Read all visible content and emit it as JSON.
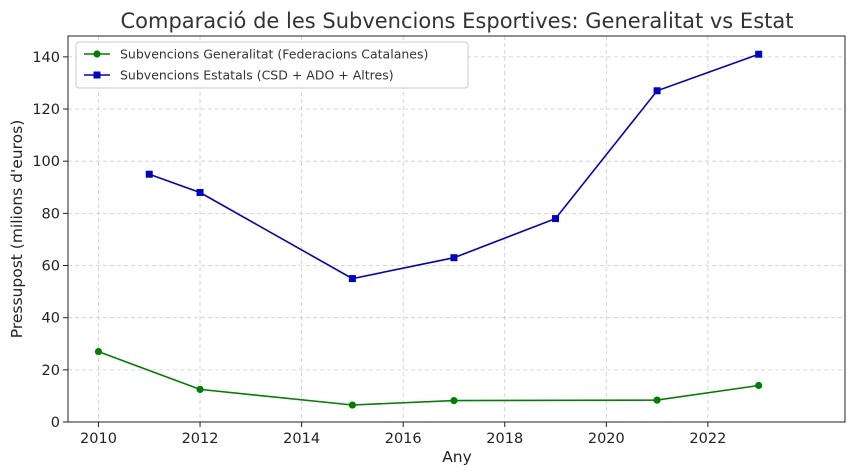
{
  "chart_data": {
    "type": "line",
    "title": "Comparació de les Subvencions Esportives: Generalitat vs Estat",
    "xlabel": "Any",
    "ylabel": "Pressupost (milions d'euros)",
    "xlim": [
      2009.4,
      2024.7
    ],
    "ylim": [
      0,
      148
    ],
    "xticks": [
      2010,
      2012,
      2014,
      2016,
      2018,
      2020,
      2022
    ],
    "yticks": [
      0,
      20,
      40,
      60,
      80,
      100,
      120,
      140
    ],
    "grid": true,
    "legend_position": "top-left",
    "series": [
      {
        "name": "Subvencions Generalitat (Federacions Catalanes)",
        "color": "#008000",
        "marker": "circle",
        "x": [
          2010,
          2012,
          2015,
          2017,
          2021,
          2023
        ],
        "y": [
          27,
          12.5,
          6.5,
          8.2,
          8.4,
          14
        ]
      },
      {
        "name": "Subvencions Estatals (CSD + ADO + Altres)",
        "color": "#0000cc",
        "marker": "square",
        "x": [
          2011,
          2012,
          2015,
          2017,
          2019,
          2021,
          2023
        ],
        "y": [
          95,
          88,
          55,
          63,
          78,
          127,
          141
        ]
      }
    ]
  }
}
